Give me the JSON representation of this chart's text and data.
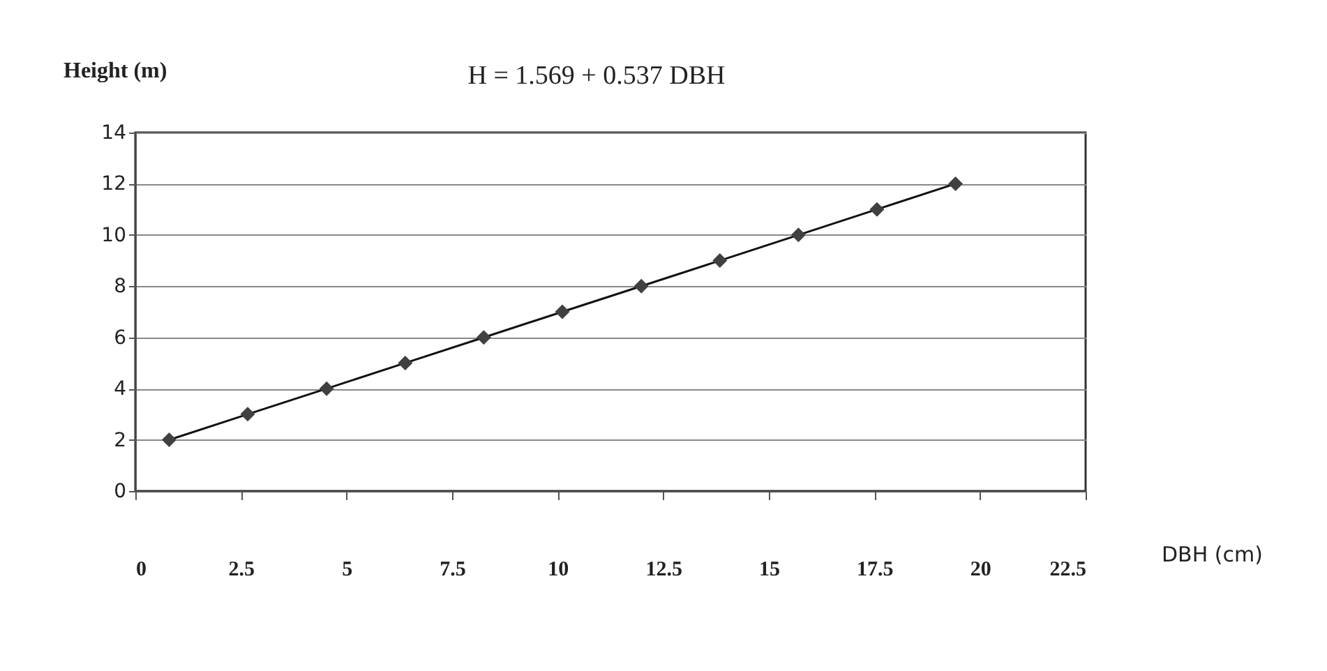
{
  "chart_data": {
    "type": "line",
    "title": "H = 1.569 + 0.537 DBH",
    "xlabel": "DBH (cm)",
    "ylabel": "Height (m)",
    "x": [
      0.8,
      2.66,
      4.53,
      6.39,
      8.25,
      10.11,
      11.98,
      13.84,
      15.7,
      17.56,
      19.42
    ],
    "series": [
      {
        "color": "#404040",
        "values": [
          2,
          3,
          4,
          5,
          6,
          7,
          8,
          9,
          10,
          11,
          12
        ]
      }
    ],
    "xlim": [
      0,
      22.5
    ],
    "xticks": [
      0,
      2.5,
      5,
      7.5,
      10,
      12.5,
      15,
      17.5,
      20,
      22.5
    ],
    "ylim": [
      0,
      14
    ],
    "yticks": [
      0,
      2,
      4,
      6,
      8,
      10,
      12,
      14
    ],
    "grid": "y",
    "marker": "diamond",
    "line_style": "solid"
  }
}
